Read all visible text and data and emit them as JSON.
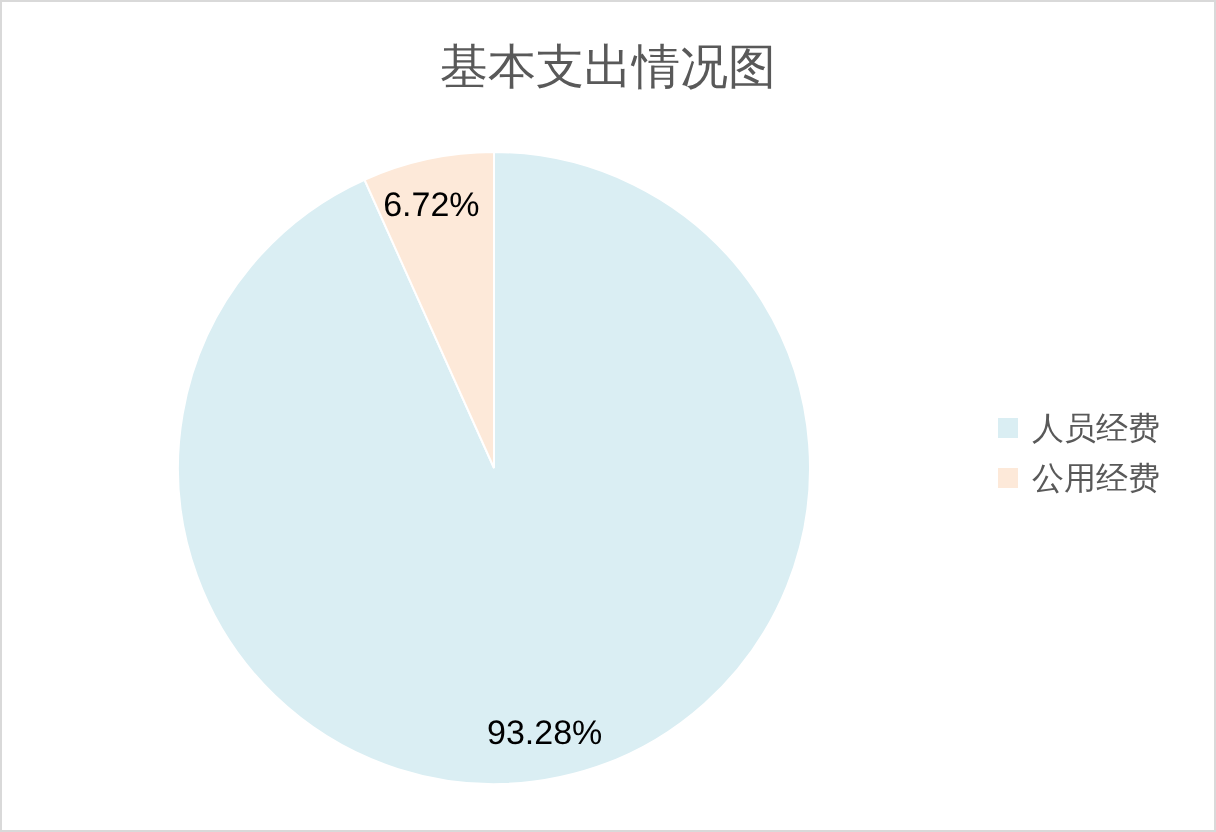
{
  "chart_data": {
    "type": "pie",
    "title": "基本支出情况图",
    "categories": [
      "人员经费",
      "公用经费"
    ],
    "values": [
      93.28,
      6.72
    ],
    "colors": [
      "#daeef3",
      "#fde9d9"
    ],
    "value_labels": [
      "93.28%",
      "6.72%"
    ],
    "legend": "right"
  }
}
